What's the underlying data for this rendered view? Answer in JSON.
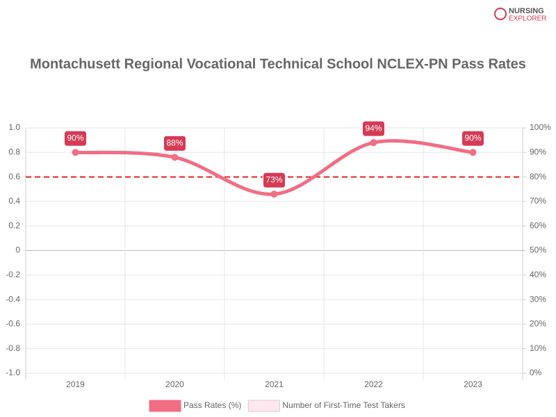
{
  "logo": [
    "NURSING",
    "EXPLORER"
  ],
  "chart_data": {
    "type": "line",
    "title": "Montachusett Regional Vocational Technical School NCLEX-PN Pass Rates",
    "categories": [
      "2019",
      "2020",
      "2021",
      "2022",
      "2023"
    ],
    "series": [
      {
        "name": "Pass Rates (%)",
        "color": "#f06e84",
        "axis": "y2",
        "values": [
          90,
          88,
          73,
          94,
          90
        ],
        "value_labels": [
          "90%",
          "88%",
          "73%",
          "94%",
          "90%"
        ]
      },
      {
        "name": "Number of First-Time Test Takers",
        "color": "#fce8ee",
        "values": [
          null,
          null,
          null,
          null,
          null
        ]
      }
    ],
    "ylim": [
      -1,
      1
    ],
    "yticks": [
      {
        "value": 1,
        "label": "1.0"
      },
      0.8,
      0.6,
      0.4,
      0.2,
      0,
      -0.2,
      -0.4,
      -0.6,
      -0.8,
      {
        "value": -1,
        "label": "-1.0"
      }
    ],
    "y2lim": [
      0,
      100
    ],
    "y2ticks": [
      {
        "value": 100,
        "label": "100%"
      },
      {
        "value": 90,
        "label": "90%"
      },
      {
        "value": 80,
        "label": "80%"
      },
      {
        "value": 70,
        "label": "70%"
      },
      {
        "value": 60,
        "label": "60%"
      },
      {
        "value": 50,
        "label": "50%"
      },
      {
        "value": 40,
        "label": "40%"
      },
      {
        "value": 30,
        "label": "30%"
      },
      {
        "value": 20,
        "label": "20%"
      },
      {
        "value": 10,
        "label": "10%"
      },
      {
        "value": 0,
        "label": "0%"
      }
    ],
    "reference_line": {
      "value": 80,
      "axis": "y2",
      "color": "#e02424"
    },
    "grid": true,
    "label_color": "#d63a55"
  }
}
